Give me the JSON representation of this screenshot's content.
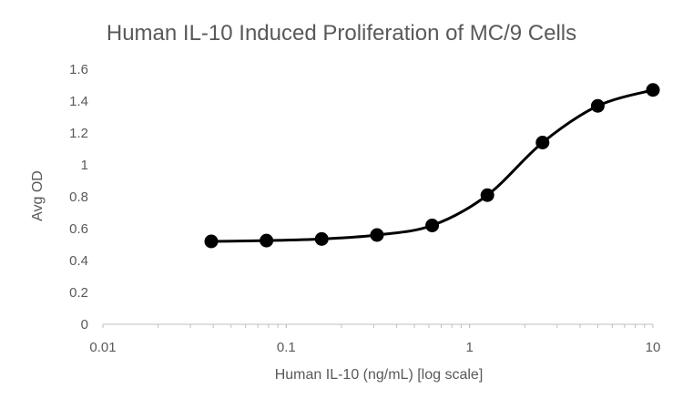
{
  "chart_data": {
    "type": "scatter",
    "title": "Human IL-10 Induced Proliferation of MC/9 Cells",
    "xlabel": "Human IL-10 (ng/mL) [log scale]",
    "ylabel": "Avg OD",
    "xscale": "log",
    "xlim": [
      0.01,
      10
    ],
    "ylim": [
      0,
      1.6
    ],
    "x_ticks": [
      "0.01",
      "0.1",
      "1",
      "10"
    ],
    "y_ticks": [
      "0",
      "0.2",
      "0.4",
      "0.6",
      "0.8",
      "1",
      "1.2",
      "1.4",
      "1.6"
    ],
    "grid": false,
    "legend": "none",
    "line": "smoothed",
    "series": [
      {
        "x": [
          0.039,
          0.078,
          0.156,
          0.3125,
          0.625,
          1.25,
          2.5,
          5,
          10
        ],
        "y": [
          0.52,
          0.525,
          0.535,
          0.56,
          0.62,
          0.81,
          1.14,
          1.37,
          1.47
        ],
        "color": "#000000"
      }
    ]
  }
}
